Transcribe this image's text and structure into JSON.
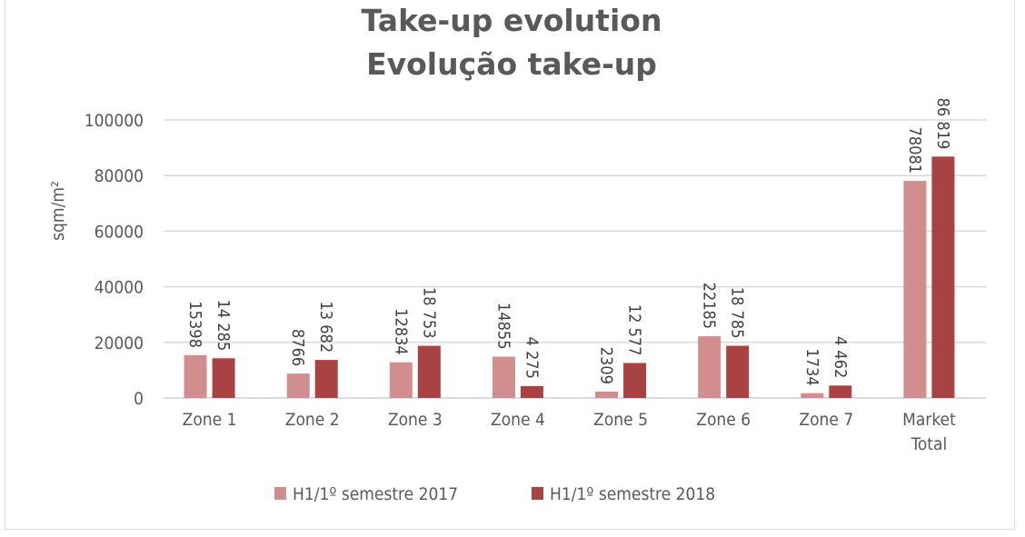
{
  "chart_data": {
    "type": "bar",
    "title": [
      "Take-up evolution",
      "Evolução take-up"
    ],
    "xlabel": "",
    "ylabel": "sqm/m²",
    "ylim": [
      0,
      100000
    ],
    "yticks": [
      "0",
      "20000",
      "40000",
      "60000",
      "80000",
      "100000"
    ],
    "grid": true,
    "legend_position": "bottom",
    "categories": [
      "Zone 1",
      "Zone 2",
      "Zone 3",
      "Zone 4",
      "Zone 5",
      "Zone 6",
      "Zone 7",
      "Market Total"
    ],
    "series": [
      {
        "name": "H1/1º semestre 2017",
        "color": "#d08e8e",
        "values": [
          15398,
          8766,
          12834,
          14855,
          2309,
          22185,
          1734,
          78081
        ],
        "labels": [
          "15398",
          "8766",
          "12834",
          "14855",
          "2309",
          "22185",
          "1734",
          "78081"
        ]
      },
      {
        "name": "H1/1º semestre 2018",
        "color": "#a94242",
        "values": [
          14285,
          13682,
          18753,
          4275,
          12577,
          18785,
          4462,
          86819
        ],
        "labels": [
          "14 285",
          "13 682",
          "18 753",
          "4 275",
          "12 577",
          "18 785",
          "4 462",
          "86 819"
        ]
      }
    ]
  }
}
